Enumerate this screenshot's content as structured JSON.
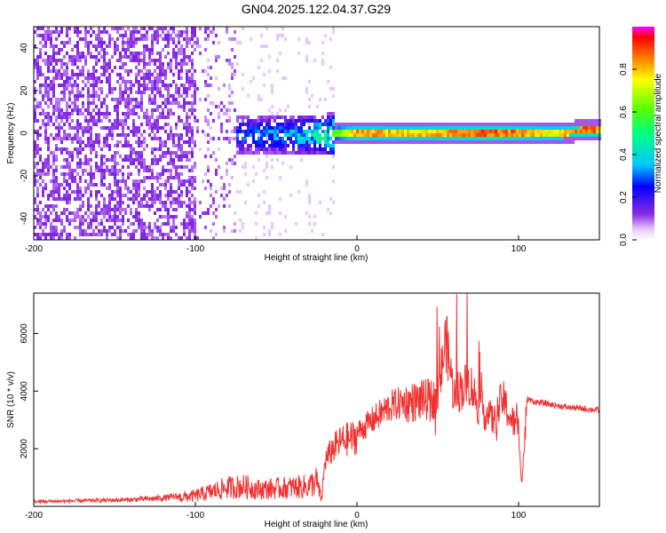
{
  "title": "GN04.2025.122.04.37.G29",
  "chart_data": [
    {
      "type": "heatmap",
      "title": "GN04.2025.122.04.37.G29",
      "xlabel": "Height of straight line (km)",
      "ylabel": "Frequency (Hz)",
      "xlim": [
        -200,
        150
      ],
      "ylim": [
        -50,
        50
      ],
      "xticks": [
        -200,
        -100,
        0,
        100
      ],
      "yticks": [
        -40,
        -20,
        0,
        20,
        40
      ],
      "colorbar": {
        "label": "Normalized spectral amplitude",
        "range": [
          0,
          1
        ],
        "ticks": [
          0.0,
          0.2,
          0.4,
          0.6,
          0.8
        ]
      },
      "ridge": {
        "x": [
          -100,
          -80,
          -60,
          -40,
          -20,
          0,
          20,
          40,
          60,
          80,
          100,
          120,
          140,
          150
        ],
        "freq": [
          0,
          0,
          0,
          0,
          0,
          1,
          1,
          1,
          1,
          1,
          1,
          1,
          2,
          2
        ],
        "peak_amplitude": [
          0.2,
          0.3,
          0.35,
          0.4,
          0.55,
          0.9,
          0.85,
          0.85,
          0.9,
          0.95,
          0.9,
          0.8,
          0.95,
          0.9
        ]
      }
    },
    {
      "type": "line",
      "xlabel": "Height of straight line (km)",
      "ylabel": "SNR (10 * v/v)",
      "xlim": [
        -200,
        150
      ],
      "ylim": [
        0,
        7400
      ],
      "xticks": [
        -200,
        -100,
        0,
        100
      ],
      "yticks": [
        2000,
        4000,
        6000
      ],
      "series": [
        {
          "name": "SNR",
          "color": "#f03030",
          "x": [
            -200,
            -180,
            -160,
            -140,
            -120,
            -100,
            -90,
            -80,
            -70,
            -60,
            -50,
            -40,
            -30,
            -25,
            -22,
            -20,
            -15,
            -10,
            0,
            10,
            20,
            30,
            40,
            50,
            55,
            60,
            65,
            70,
            75,
            80,
            85,
            90,
            95,
            100,
            102,
            105,
            110,
            120,
            130,
            140,
            150
          ],
          "y": [
            200,
            220,
            250,
            280,
            350,
            500,
            700,
            900,
            950,
            800,
            850,
            900,
            950,
            1200,
            300,
            1800,
            2300,
            2600,
            2800,
            3300,
            3800,
            4000,
            4100,
            4200,
            6500,
            4300,
            4600,
            4800,
            3900,
            3600,
            3300,
            4200,
            3400,
            3000,
            900,
            3800,
            3700,
            3600,
            3500,
            3450,
            3400
          ]
        }
      ]
    }
  ]
}
